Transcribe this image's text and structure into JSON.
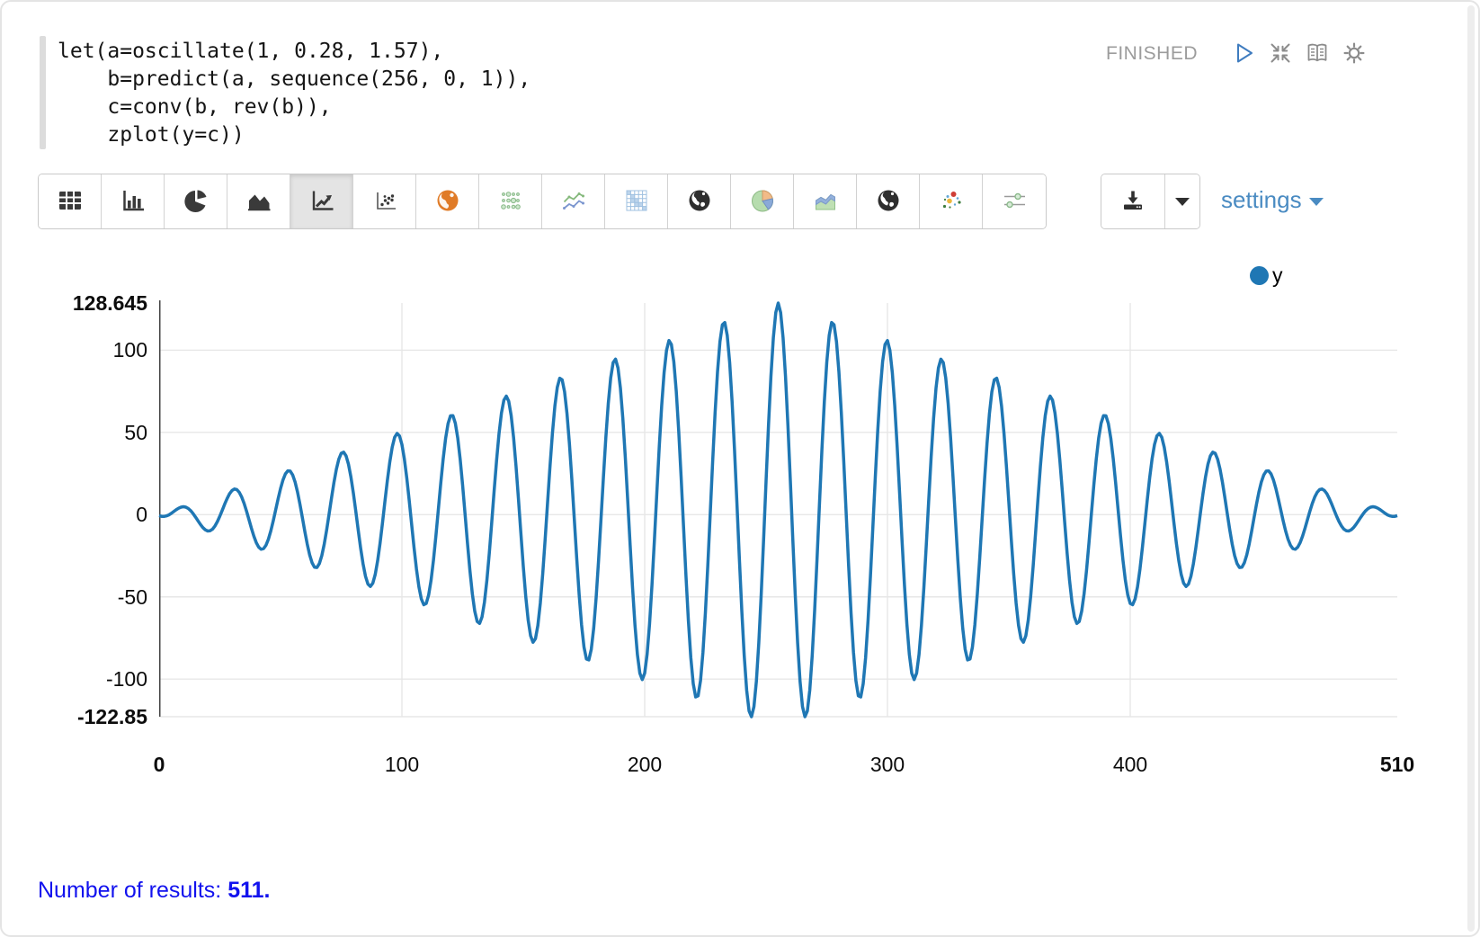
{
  "editor": {
    "code": "let(a=oscillate(1, 0.28, 1.57),\n    b=predict(a, sequence(256, 0, 1)),\n    c=conv(b, rev(b)),\n    zplot(y=c))"
  },
  "header": {
    "status": "FINISHED",
    "icons": [
      "play-icon",
      "collapse-icon",
      "book-icon",
      "gear-icon"
    ],
    "status_color": "#9c9c9c",
    "play_color": "#3f7cbf"
  },
  "toolbar": {
    "buttons": [
      {
        "name": "table",
        "icon": "table-icon",
        "selected": false
      },
      {
        "name": "bar-chart",
        "icon": "bar-chart-icon",
        "selected": false
      },
      {
        "name": "pie-chart",
        "icon": "pie-chart-icon",
        "selected": false
      },
      {
        "name": "area-chart",
        "icon": "area-chart-icon",
        "selected": false
      },
      {
        "name": "line-chart",
        "icon": "line-chart-icon",
        "selected": true
      },
      {
        "name": "scatter-chart",
        "icon": "scatter-chart-icon",
        "selected": false
      },
      {
        "name": "map-orange",
        "icon": "orange-globe-icon",
        "selected": false
      },
      {
        "name": "dot-grid-chart",
        "icon": "green-dot-grid-icon",
        "selected": false
      },
      {
        "name": "multi-line-chart",
        "icon": "multi-line-icon",
        "selected": false
      },
      {
        "name": "heatmap-chart",
        "icon": "heatmap-icon",
        "selected": false
      },
      {
        "name": "globe-chart-1",
        "icon": "globe-icon",
        "selected": false
      },
      {
        "name": "pie-chart-colored",
        "icon": "colored-pie-icon",
        "selected": false
      },
      {
        "name": "area-chart-colored",
        "icon": "colored-area-icon",
        "selected": false
      },
      {
        "name": "globe-chart-2",
        "icon": "globe-icon",
        "selected": false
      },
      {
        "name": "scatter-colored",
        "icon": "colored-scatter-icon",
        "selected": false
      },
      {
        "name": "slider-settings",
        "icon": "sliders-icon",
        "selected": false
      }
    ]
  },
  "controls": {
    "download_icon": "download-icon",
    "download_caret_icon": "caret-down-icon",
    "settings_label": "settings",
    "settings_color": "#4a8bc2"
  },
  "chart_data": {
    "type": "line",
    "title": "",
    "xlabel": "",
    "ylabel": "",
    "xlim": [
      0,
      510
    ],
    "ylim": [
      -122.85,
      128.645
    ],
    "grid": true,
    "num_points": 511,
    "x_ticks": [
      {
        "value": 0,
        "label": "0",
        "bold": true
      },
      {
        "value": 100,
        "label": "100",
        "bold": false
      },
      {
        "value": 200,
        "label": "200",
        "bold": false
      },
      {
        "value": 300,
        "label": "300",
        "bold": false
      },
      {
        "value": 400,
        "label": "400",
        "bold": false
      },
      {
        "value": 510,
        "label": "510",
        "bold": true
      }
    ],
    "y_ticks": [
      {
        "value": 128.645,
        "label": "128.645",
        "bold": true
      },
      {
        "value": 100,
        "label": "100",
        "bold": false
      },
      {
        "value": 50,
        "label": "50",
        "bold": false
      },
      {
        "value": 0,
        "label": "0",
        "bold": false
      },
      {
        "value": -50,
        "label": "-50",
        "bold": false
      },
      {
        "value": -100,
        "label": "-100",
        "bold": false
      },
      {
        "value": -122.85,
        "label": "-122.85",
        "bold": true
      }
    ],
    "legend": {
      "position": "top-right",
      "entries": [
        {
          "label": "y",
          "color": "#1f77b4"
        }
      ]
    },
    "series": [
      {
        "name": "y",
        "color": "#1f77b4",
        "y_max": 128.645,
        "y_min": -122.85,
        "description": "c = conv(b, rev(b)): autocorrelation of b[t] = sin(0.28*t + 1.57) for t = 0..255. 511-point cosine burst with triangular envelope, zero at both ends, peak 128.645 at x = 255, minimum -122.85 near the center; oscillation period ~22.4 samples.",
        "generator": {
          "kind": "autocorrelation-of-sinusoid",
          "amplitude": 1,
          "frequency": 0.28,
          "phase": 1.57,
          "signal_length": 256,
          "result_length": 511
        }
      }
    ],
    "gridline_color": "#e7e7e7",
    "axis_line_color": "#444444"
  },
  "footer": {
    "text": "Number of results: ",
    "count": "511.",
    "color": "#1212ee"
  }
}
